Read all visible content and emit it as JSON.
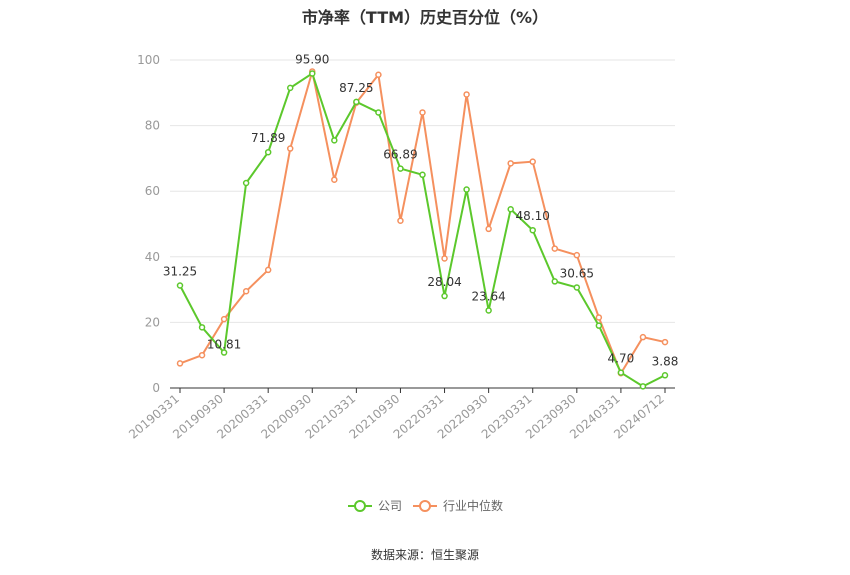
{
  "chart_data": {
    "type": "line",
    "title": "市净率（TTM）历史百分位（%）",
    "ylim": [
      0,
      100
    ],
    "yticks": [
      0,
      20,
      40,
      60,
      80,
      100
    ],
    "grid": true,
    "legend_position": "bottom",
    "x_tick_labels": [
      "20190331",
      "20190930",
      "20200331",
      "20200930",
      "20210331",
      "20210930",
      "20220331",
      "20220930",
      "20230331",
      "20230930",
      "20240331",
      "20240712"
    ],
    "x": [
      "20190331",
      "20190630",
      "20190930",
      "20191231",
      "20200331",
      "20200630",
      "20200930",
      "20201231",
      "20210331",
      "20210630",
      "20210930",
      "20211231",
      "20220331",
      "20220630",
      "20220930",
      "20221231",
      "20230331",
      "20230630",
      "20230930",
      "20231231",
      "20240331",
      "20240630",
      "20240712"
    ],
    "series": [
      {
        "name": "公司",
        "color": "#5cc82c",
        "values": [
          31.25,
          18.5,
          10.81,
          62.5,
          71.89,
          91.5,
          95.9,
          75.5,
          87.25,
          84.0,
          66.89,
          65.0,
          28.04,
          60.5,
          23.64,
          54.5,
          48.1,
          32.5,
          30.65,
          19.0,
          4.7,
          0.5,
          3.88
        ]
      },
      {
        "name": "行业中位数",
        "color": "#f5905e",
        "values": [
          7.5,
          10.0,
          21.0,
          29.5,
          36.0,
          73.0,
          96.5,
          63.5,
          87.0,
          95.5,
          51.0,
          84.0,
          39.5,
          89.5,
          48.5,
          68.5,
          69.0,
          42.5,
          40.5,
          21.5,
          4.5,
          15.5,
          14.0
        ]
      }
    ],
    "data_labels": [
      {
        "index": 0,
        "value": "31.25"
      },
      {
        "index": 2,
        "value": "10.81"
      },
      {
        "index": 4,
        "value": "71.89"
      },
      {
        "index": 6,
        "value": "95.90"
      },
      {
        "index": 8,
        "value": "87.25"
      },
      {
        "index": 10,
        "value": "66.89"
      },
      {
        "index": 12,
        "value": "28.04"
      },
      {
        "index": 14,
        "value": "23.64"
      },
      {
        "index": 16,
        "value": "48.10"
      },
      {
        "index": 18,
        "value": "30.65"
      },
      {
        "index": 20,
        "value": "4.70"
      },
      {
        "index": 22,
        "value": "3.88"
      }
    ]
  },
  "legend": {
    "company": "公司",
    "industry": "行业中位数"
  },
  "source": "数据来源：恒生聚源"
}
